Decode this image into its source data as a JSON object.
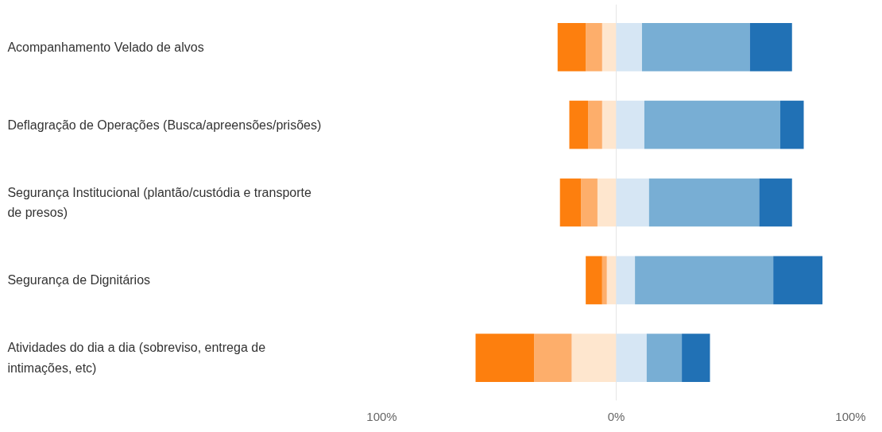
{
  "chart_data": {
    "type": "bar",
    "orientation": "horizontal",
    "stacked": true,
    "categories": [
      "Acompanhamento Velado de alvos",
      "Deflagração de Operações (Busca/apreensões/prisões)",
      "Segurança Institucional (plantão/custódia e transporte de presos)",
      "Segurança de Dignitários",
      "Atividades do dia a dia (sobreviso, entrega de intimações, etc)"
    ],
    "series": [
      {
        "color": "#fee6ce",
        "values": [
          -6,
          -6,
          -8,
          -4,
          -19
        ]
      },
      {
        "color": "#fdae6b",
        "values": [
          -7,
          -6,
          -7,
          -2,
          -16
        ]
      },
      {
        "color": "#fd7f0e",
        "values": [
          -12,
          -8,
          -9,
          -7,
          -25
        ]
      },
      {
        "color": "#d6e6f4",
        "values": [
          11,
          12,
          14,
          8,
          13
        ]
      },
      {
        "color": "#78aed4",
        "values": [
          46,
          58,
          47,
          59,
          15
        ]
      },
      {
        "color": "#2171b5",
        "values": [
          18,
          10,
          14,
          21,
          12
        ]
      }
    ],
    "xlim": [
      -100,
      100
    ],
    "xticks": [
      {
        "value": -100,
        "label": "100%"
      },
      {
        "value": 0,
        "label": "0%"
      },
      {
        "value": 100,
        "label": "100%"
      }
    ],
    "grid": "x"
  }
}
